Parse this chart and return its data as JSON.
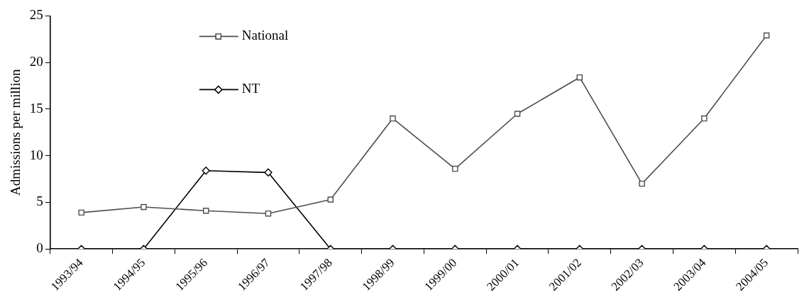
{
  "chart_data": {
    "type": "line",
    "ylabel": "Admissions per million",
    "categories": [
      "1993/94",
      "1994/95",
      "1995/96",
      "1996/97",
      "1997/98",
      "1998/99",
      "1999/00",
      "2000/01",
      "2001/02",
      "2002/03",
      "2003/04",
      "2004/05"
    ],
    "series": [
      {
        "name": "National",
        "color": "#4d4d4d",
        "marker": "square",
        "values": [
          3.9,
          4.5,
          4.1,
          3.8,
          5.3,
          14.0,
          8.6,
          14.5,
          18.4,
          7.0,
          14.0,
          22.9
        ]
      },
      {
        "name": "NT",
        "color": "#000000",
        "marker": "diamond",
        "values": [
          0,
          0,
          8.4,
          8.2,
          0,
          0,
          0,
          0,
          0,
          0,
          0,
          0
        ]
      }
    ],
    "ylim": [
      0,
      25
    ],
    "yticks": [
      0,
      5,
      10,
      15,
      20,
      25
    ],
    "grid": false,
    "legend": "top left",
    "line_style": "solid"
  }
}
